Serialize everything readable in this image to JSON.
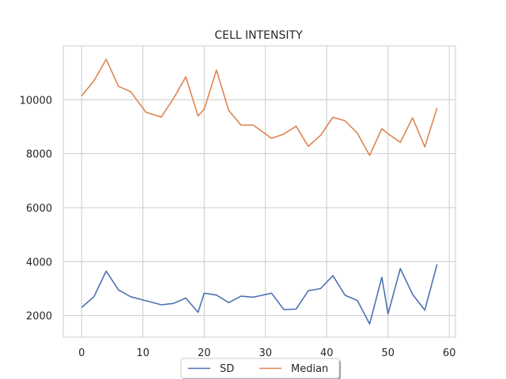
{
  "chart_data": {
    "type": "line",
    "title": "CELL INTENSITY",
    "xlabel": "",
    "ylabel": "",
    "xlim": [
      -3,
      61
    ],
    "ylim": [
      1200,
      12000
    ],
    "xticks": [
      0,
      10,
      20,
      30,
      40,
      50,
      60
    ],
    "yticks": [
      2000,
      4000,
      6000,
      8000,
      10000
    ],
    "grid": true,
    "legend": {
      "position": "bottom-center",
      "columns": 2
    },
    "series": [
      {
        "name": "SD",
        "color": "#4c72b0",
        "x": [
          0,
          2,
          4,
          6,
          8,
          10.5,
          13,
          15,
          17,
          19,
          20,
          22,
          24,
          26,
          28,
          31,
          33,
          35,
          37,
          39,
          41,
          43,
          45,
          47,
          49,
          50,
          52,
          54,
          56,
          58
        ],
        "y": [
          2300,
          2700,
          3650,
          2950,
          2700,
          2550,
          2400,
          2450,
          2650,
          2120,
          2830,
          2760,
          2480,
          2720,
          2680,
          2830,
          2220,
          2240,
          2920,
          3000,
          3480,
          2750,
          2560,
          1690,
          3420,
          2060,
          3740,
          2790,
          2200,
          3900
        ]
      },
      {
        "name": "Median",
        "color": "#dd8452",
        "x": [
          0,
          2,
          4,
          6,
          8,
          10.5,
          13,
          15,
          17,
          19,
          20,
          22,
          24,
          26,
          28,
          31,
          33,
          35,
          37,
          39,
          41,
          43,
          45,
          47,
          49,
          50,
          52,
          54,
          56,
          58
        ],
        "y": [
          10150,
          10700,
          11500,
          10500,
          10300,
          9540,
          9360,
          10050,
          10850,
          9400,
          9650,
          11100,
          9600,
          9060,
          9060,
          8570,
          8730,
          9020,
          8270,
          8680,
          9350,
          9220,
          8760,
          7940,
          8930,
          8740,
          8420,
          9330,
          8250,
          9700
        ]
      }
    ]
  }
}
